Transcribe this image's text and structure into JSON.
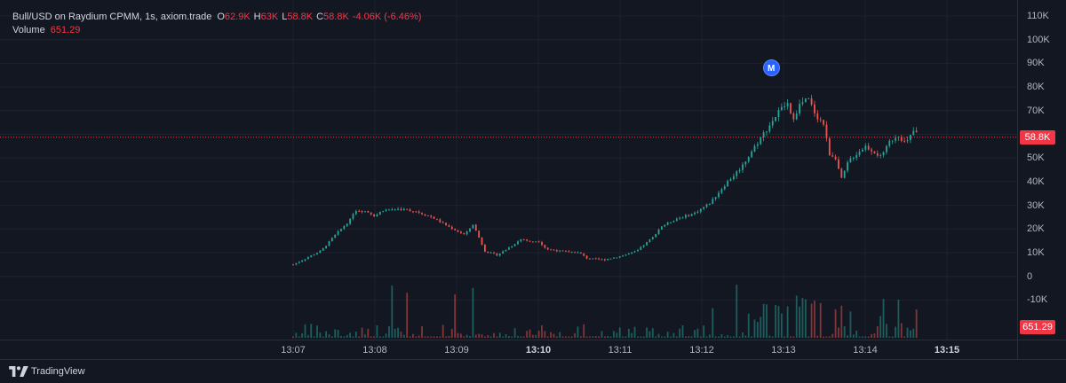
{
  "legend": {
    "title": "Bull/USD on Raydium CPMM, 1s, axiom.trade",
    "o_key": "O",
    "o_val": "62.9K",
    "h_key": "H",
    "h_val": "63K",
    "l_key": "L",
    "l_val": "58.8K",
    "c_key": "C",
    "c_val": "58.8K",
    "change": "-4.06K (-6.46%)",
    "volume_label": "Volume",
    "volume_value": "651.29"
  },
  "price_scale": {
    "ticks": [
      "110K",
      "100K",
      "90K",
      "80K",
      "70K",
      "60K",
      "50K",
      "40K",
      "30K",
      "20K",
      "10K",
      "0",
      "-10K"
    ],
    "last_price_label": "58.8K",
    "volume_badge": "651.29"
  },
  "time_scale": {
    "ticks": [
      {
        "label": "13:07",
        "bold": false
      },
      {
        "label": "13:08",
        "bold": false
      },
      {
        "label": "13:09",
        "bold": false
      },
      {
        "label": "13:10",
        "bold": true
      },
      {
        "label": "13:11",
        "bold": false
      },
      {
        "label": "13:12",
        "bold": false
      },
      {
        "label": "13:13",
        "bold": false
      },
      {
        "label": "13:14",
        "bold": false
      },
      {
        "label": "13:15",
        "bold": true
      }
    ]
  },
  "marker": {
    "label": "M",
    "time_min": 5.85,
    "price": 88000
  },
  "footer": {
    "brand": "TradingView"
  },
  "colors": {
    "up": "#26a69a",
    "down": "#ef5350",
    "grid": "#1e222d",
    "last_price_line": "#f23645"
  },
  "chart_data": {
    "type": "candlestick",
    "interval": "1s",
    "x_axis": "time",
    "y_axis": "price (USD)",
    "y_range": [
      -10000,
      110000
    ],
    "start_time": "13:07",
    "path_points": [
      [
        0.0,
        5000
      ],
      [
        0.15,
        7500
      ],
      [
        0.35,
        11000
      ],
      [
        0.5,
        17000
      ],
      [
        0.7,
        24000
      ],
      [
        0.75,
        28000
      ],
      [
        0.9,
        27500
      ],
      [
        1.0,
        25500
      ],
      [
        1.1,
        28000
      ],
      [
        1.3,
        28500
      ],
      [
        1.5,
        27500
      ],
      [
        1.7,
        25000
      ],
      [
        1.9,
        21000
      ],
      [
        2.1,
        17500
      ],
      [
        2.2,
        22000
      ],
      [
        2.35,
        10500
      ],
      [
        2.5,
        9000
      ],
      [
        2.7,
        13500
      ],
      [
        2.8,
        16000
      ],
      [
        2.9,
        14500
      ],
      [
        3.0,
        15000
      ],
      [
        3.1,
        11500
      ],
      [
        3.3,
        10500
      ],
      [
        3.5,
        10000
      ],
      [
        3.6,
        7500
      ],
      [
        3.8,
        7000
      ],
      [
        4.0,
        8500
      ],
      [
        4.2,
        10500
      ],
      [
        4.4,
        16500
      ],
      [
        4.5,
        21000
      ],
      [
        4.7,
        24500
      ],
      [
        4.9,
        26500
      ],
      [
        5.1,
        31000
      ],
      [
        5.3,
        39500
      ],
      [
        5.4,
        43000
      ],
      [
        5.5,
        47000
      ],
      [
        5.65,
        55000
      ],
      [
        5.75,
        60000
      ],
      [
        5.85,
        65000
      ],
      [
        5.95,
        70000
      ],
      [
        6.05,
        73000
      ],
      [
        6.1,
        66000
      ],
      [
        6.2,
        72500
      ],
      [
        6.3,
        75000
      ],
      [
        6.4,
        68000
      ],
      [
        6.5,
        64000
      ],
      [
        6.55,
        52000
      ],
      [
        6.65,
        50000
      ],
      [
        6.7,
        40000
      ],
      [
        6.8,
        49000
      ],
      [
        6.9,
        52000
      ],
      [
        7.0,
        55000
      ],
      [
        7.1,
        53000
      ],
      [
        7.2,
        50000
      ],
      [
        7.3,
        57000
      ],
      [
        7.4,
        60000
      ],
      [
        7.5,
        56000
      ],
      [
        7.6,
        62000
      ],
      [
        7.65,
        58800
      ]
    ],
    "volume_max": 651.29
  }
}
